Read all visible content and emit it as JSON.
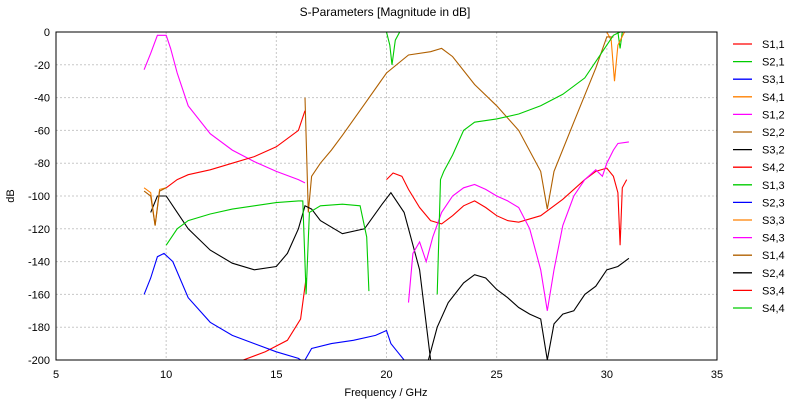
{
  "chart_data": {
    "type": "line",
    "title": "S-Parameters [Magnitude in dB]",
    "xlabel": "Frequency / GHz",
    "ylabel": "dB",
    "xlim": [
      5,
      35
    ],
    "ylim": [
      -200,
      0
    ],
    "xticks": [
      5,
      10,
      15,
      20,
      25,
      30,
      35
    ],
    "yticks": [
      0,
      -20,
      -40,
      -60,
      -80,
      -100,
      -120,
      -140,
      -160,
      -180,
      -200
    ],
    "grid": true,
    "legend_position": "right",
    "series": [
      {
        "name": "S1,1",
        "color": "#ff0000",
        "points": [
          [
            13.5,
            -200
          ],
          [
            14.5,
            -195
          ],
          [
            15.5,
            -188
          ],
          [
            16.1,
            -175
          ],
          [
            16.35,
            -150
          ]
        ]
      },
      {
        "name": "S2,1",
        "color": "#00cc00",
        "points": [
          [
            9,
            0
          ],
          [
            20,
            0
          ],
          [
            20.15,
            -8
          ],
          [
            20.25,
            -20
          ],
          [
            20.4,
            -5
          ],
          [
            20.6,
            0
          ],
          [
            30.5,
            0
          ],
          [
            30.6,
            -10
          ],
          [
            30.7,
            0
          ],
          [
            31,
            0
          ]
        ]
      },
      {
        "name": "S3,1",
        "color": "#0000ff",
        "points": [
          [
            9,
            -160
          ],
          [
            9.3,
            -150
          ],
          [
            9.6,
            -137
          ],
          [
            9.9,
            -135
          ],
          [
            10.3,
            -140
          ],
          [
            11,
            -162
          ],
          [
            12,
            -177
          ],
          [
            13,
            -185
          ],
          [
            14,
            -190
          ],
          [
            15,
            -195
          ],
          [
            16,
            -199
          ],
          [
            16.1,
            -200
          ]
        ]
      },
      {
        "name": "S4,1",
        "color": "#ff8000",
        "points": [
          [
            9,
            0
          ],
          [
            30,
            0
          ],
          [
            30.2,
            -5
          ],
          [
            30.35,
            -30
          ],
          [
            30.5,
            -8
          ],
          [
            30.8,
            0
          ],
          [
            31,
            0
          ]
        ]
      },
      {
        "name": "S1,2",
        "color": "#ff00ff",
        "points": [
          [
            9,
            -23
          ],
          [
            9.3,
            -13
          ],
          [
            9.6,
            -2
          ],
          [
            10,
            -2
          ],
          [
            10.2,
            -10
          ],
          [
            10.5,
            -25
          ],
          [
            11,
            -45
          ],
          [
            12,
            -62
          ],
          [
            13,
            -72
          ],
          [
            14,
            -79
          ],
          [
            15,
            -85
          ],
          [
            16,
            -90
          ],
          [
            16.3,
            -92
          ]
        ]
      },
      {
        "name": "S2,2",
        "color": "#b06000",
        "points": [
          [
            16.3,
            -40
          ],
          [
            16.45,
            -110
          ],
          [
            16.6,
            -88
          ],
          [
            17,
            -80
          ],
          [
            17.5,
            -72
          ],
          [
            18,
            -63
          ],
          [
            19,
            -44
          ],
          [
            20,
            -25
          ],
          [
            21,
            -14
          ],
          [
            22,
            -12
          ],
          [
            22.5,
            -10
          ],
          [
            23,
            -15
          ],
          [
            24,
            -32
          ],
          [
            25,
            -45
          ],
          [
            26,
            -60
          ],
          [
            27,
            -85
          ],
          [
            27.3,
            -108
          ],
          [
            27.6,
            -85
          ],
          [
            28.5,
            -55
          ],
          [
            29.5,
            -22
          ],
          [
            30,
            -3
          ],
          [
            30.3,
            -3
          ]
        ]
      },
      {
        "name": "S3,2",
        "color": "#000000",
        "points": [
          [
            9.3,
            -110
          ],
          [
            9.6,
            -100
          ],
          [
            10,
            -100
          ],
          [
            10.5,
            -110
          ],
          [
            11,
            -120
          ],
          [
            12,
            -133
          ],
          [
            13,
            -141
          ],
          [
            14,
            -145
          ],
          [
            15,
            -143
          ],
          [
            15.5,
            -135
          ],
          [
            16,
            -120
          ],
          [
            16.3,
            -106
          ],
          [
            16.6,
            -108
          ],
          [
            17,
            -115
          ],
          [
            18,
            -123
          ],
          [
            19,
            -120
          ],
          [
            19.8,
            -105
          ],
          [
            20.2,
            -98
          ],
          [
            20.8,
            -110
          ],
          [
            21.5,
            -145
          ],
          [
            22,
            -200
          ]
        ]
      },
      {
        "name": "S4,2",
        "color": "#ff0000",
        "points": [
          [
            20,
            -90
          ],
          [
            20.3,
            -86
          ],
          [
            20.7,
            -88
          ],
          [
            21,
            -96
          ],
          [
            21.5,
            -107
          ],
          [
            22,
            -115
          ],
          [
            22.5,
            -117
          ],
          [
            23,
            -112
          ],
          [
            23.5,
            -106
          ],
          [
            24,
            -103
          ],
          [
            24.5,
            -107
          ],
          [
            25,
            -112
          ],
          [
            25.5,
            -115
          ],
          [
            26,
            -116
          ],
          [
            27,
            -112
          ],
          [
            28,
            -102
          ],
          [
            29,
            -90
          ],
          [
            29.5,
            -85
          ],
          [
            30,
            -83
          ],
          [
            30.3,
            -88
          ],
          [
            30.5,
            -98
          ],
          [
            30.6,
            -130
          ],
          [
            30.7,
            -95
          ],
          [
            30.9,
            -90
          ]
        ]
      },
      {
        "name": "S1,3",
        "color": "#00cc00",
        "points": [
          [
            10,
            -130
          ],
          [
            10.5,
            -120
          ],
          [
            11,
            -115
          ],
          [
            12,
            -111
          ],
          [
            13,
            -108
          ],
          [
            14,
            -106
          ],
          [
            15,
            -104
          ],
          [
            16,
            -103
          ],
          [
            16.2,
            -103
          ],
          [
            16.35,
            -160
          ],
          [
            16.5,
            -110
          ],
          [
            17,
            -106
          ],
          [
            18,
            -105
          ],
          [
            18.8,
            -106
          ],
          [
            19.1,
            -125
          ],
          [
            19.2,
            -158
          ]
        ]
      },
      {
        "name": "S2,3",
        "color": "#0000ff",
        "points": [
          [
            16.3,
            -200
          ],
          [
            16.6,
            -193
          ],
          [
            17.5,
            -190
          ],
          [
            18.5,
            -188
          ],
          [
            19.5,
            -185
          ],
          [
            20,
            -182
          ],
          [
            20.2,
            -190
          ],
          [
            20.5,
            -195
          ],
          [
            20.8,
            -200
          ]
        ]
      },
      {
        "name": "S3,3",
        "color": "#ff8000",
        "points": [
          [
            9,
            -95
          ],
          [
            9.3,
            -98
          ],
          [
            9.5,
            -118
          ],
          [
            9.7,
            -96
          ],
          [
            10,
            -95
          ]
        ]
      },
      {
        "name": "S4,3",
        "color": "#ff00ff",
        "points": [
          [
            21,
            -165
          ],
          [
            21.2,
            -135
          ],
          [
            21.5,
            -128
          ],
          [
            21.8,
            -140
          ],
          [
            22.1,
            -125
          ],
          [
            22.5,
            -110
          ],
          [
            23,
            -100
          ],
          [
            23.5,
            -95
          ],
          [
            24,
            -93
          ],
          [
            24.5,
            -96
          ],
          [
            25,
            -100
          ],
          [
            25.5,
            -103
          ],
          [
            26,
            -107
          ],
          [
            26.5,
            -120
          ],
          [
            27,
            -145
          ],
          [
            27.3,
            -170
          ],
          [
            27.6,
            -145
          ],
          [
            28,
            -118
          ],
          [
            28.5,
            -100
          ],
          [
            29,
            -90
          ],
          [
            29.5,
            -84
          ],
          [
            29.8,
            -88
          ],
          [
            30,
            -80
          ],
          [
            30.3,
            -72
          ],
          [
            30.5,
            -68
          ],
          [
            31,
            -67
          ]
        ]
      },
      {
        "name": "S1,4",
        "color": "#b06000",
        "points": [
          [
            9,
            -97
          ],
          [
            9.3,
            -100
          ],
          [
            9.5,
            -118
          ],
          [
            9.7,
            -97
          ],
          [
            10,
            -95
          ]
        ]
      },
      {
        "name": "S2,4",
        "color": "#000000",
        "points": [
          [
            21.9,
            -200
          ],
          [
            22.3,
            -180
          ],
          [
            22.8,
            -165
          ],
          [
            23.5,
            -153
          ],
          [
            24,
            -148
          ],
          [
            24.5,
            -150
          ],
          [
            25,
            -157
          ],
          [
            25.5,
            -162
          ],
          [
            26,
            -168
          ],
          [
            26.5,
            -172
          ],
          [
            27,
            -175
          ],
          [
            27.3,
            -200
          ],
          [
            27.6,
            -178
          ],
          [
            28,
            -172
          ],
          [
            28.5,
            -170
          ],
          [
            29,
            -160
          ],
          [
            29.5,
            -155
          ],
          [
            30,
            -145
          ],
          [
            30.5,
            -143
          ],
          [
            31,
            -138
          ]
        ]
      },
      {
        "name": "S3,4",
        "color": "#ff0000",
        "points": [
          [
            10,
            -95
          ],
          [
            10.5,
            -90
          ],
          [
            11,
            -87
          ],
          [
            12,
            -84
          ],
          [
            13,
            -80
          ],
          [
            14,
            -76
          ],
          [
            15,
            -70
          ],
          [
            16,
            -60
          ],
          [
            16.3,
            -48
          ]
        ]
      },
      {
        "name": "S4,4",
        "color": "#00cc00",
        "points": [
          [
            22.3,
            -160
          ],
          [
            22.45,
            -90
          ],
          [
            22.6,
            -85
          ],
          [
            23,
            -75
          ],
          [
            23.5,
            -60
          ],
          [
            24,
            -55
          ],
          [
            25,
            -53
          ],
          [
            26,
            -50
          ],
          [
            27,
            -45
          ],
          [
            28,
            -38
          ],
          [
            29,
            -28
          ],
          [
            29.8,
            -12
          ],
          [
            30.3,
            -2
          ],
          [
            30.6,
            0
          ]
        ]
      }
    ]
  }
}
